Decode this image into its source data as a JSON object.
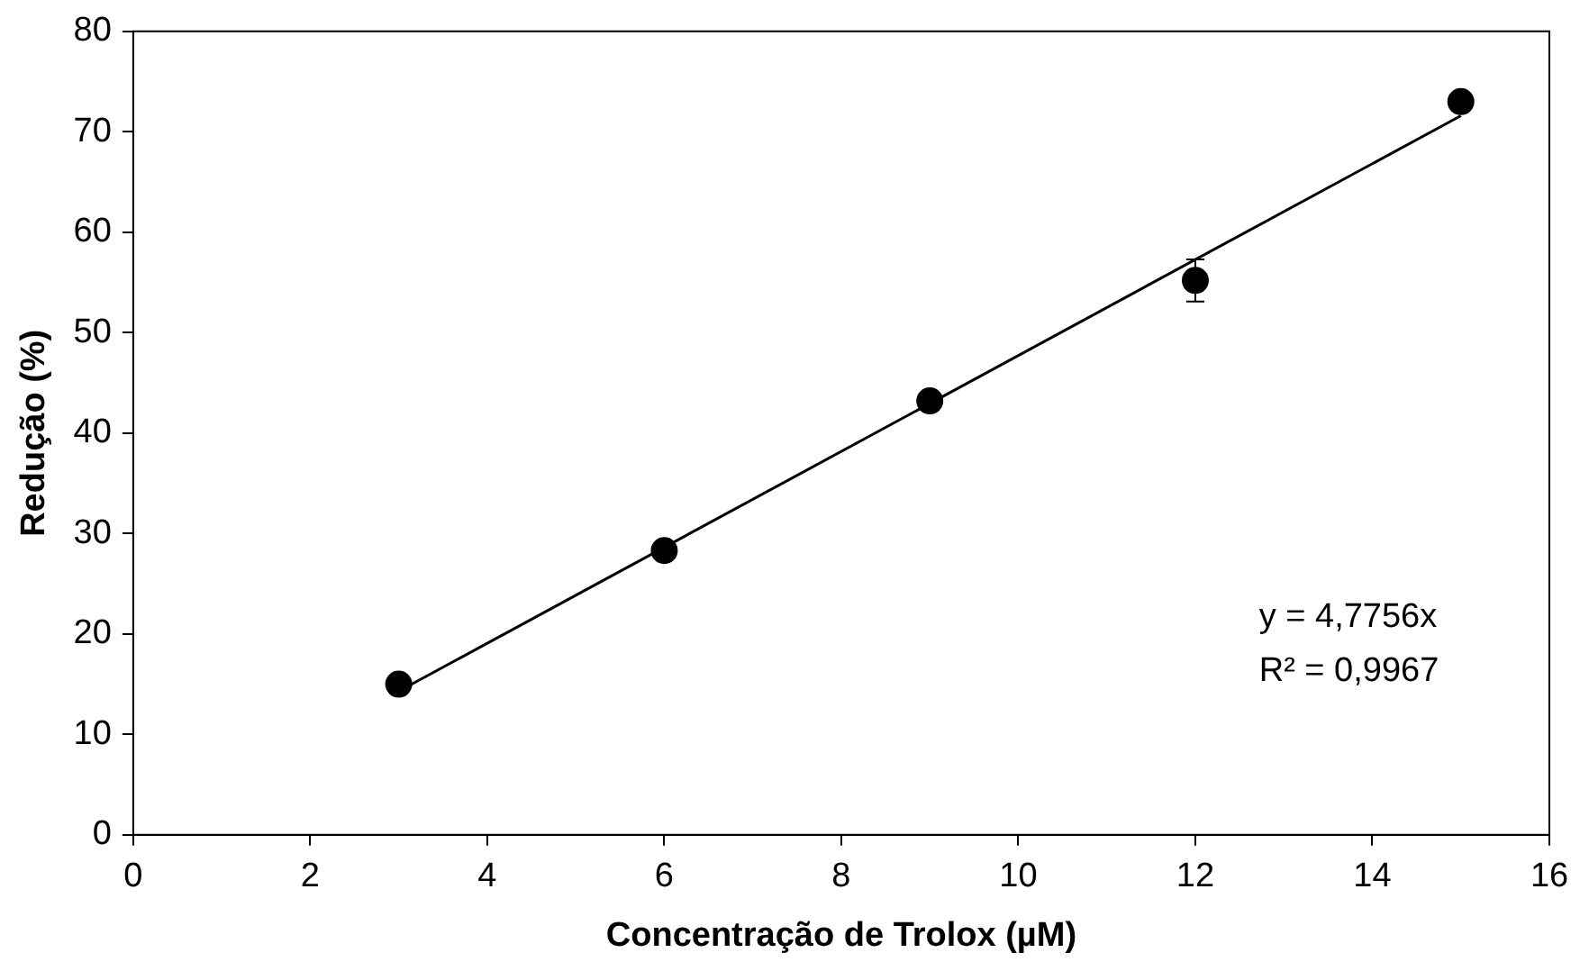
{
  "chart_data": {
    "type": "scatter",
    "xlabel": "Concentração de Trolox (µM)",
    "ylabel": "Redução (%)",
    "xlim": [
      0,
      16
    ],
    "xticks": [
      0,
      2,
      4,
      6,
      8,
      10,
      12,
      14,
      16
    ],
    "ylim": [
      0,
      80
    ],
    "yticks": [
      0,
      10,
      20,
      30,
      40,
      50,
      60,
      70,
      80
    ],
    "grid": false,
    "legend": false,
    "marker": "circle",
    "series": [
      {
        "type": "scatter",
        "color": "#000000",
        "x": [
          3,
          6,
          9,
          12,
          15
        ],
        "values": [
          15,
          28.3,
          43.2,
          55.2,
          73
        ],
        "errors": [
          null,
          null,
          null,
          2.1,
          null
        ]
      },
      {
        "type": "line",
        "color": "#000000",
        "x": [
          3,
          15
        ],
        "values": [
          14.3,
          71.6
        ],
        "marker": "none",
        "line_style": "solid"
      }
    ],
    "annotations": [
      "y = 4,7756x",
      "R² = 0,9967"
    ]
  }
}
